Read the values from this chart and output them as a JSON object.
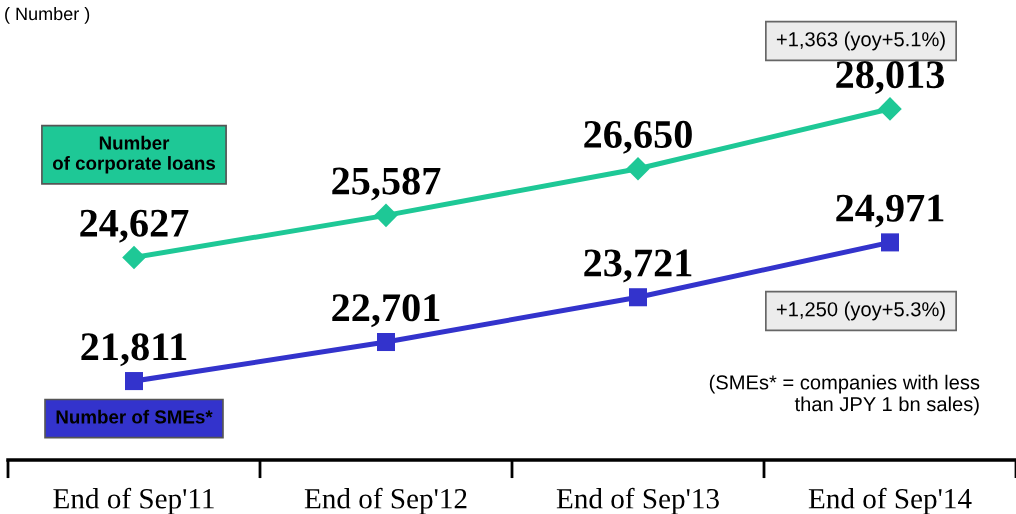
{
  "chart_data": {
    "type": "line",
    "categories": [
      "End of Sep'11",
      "End of Sep'12",
      "End of Sep'13",
      "End of Sep'14"
    ],
    "series": [
      {
        "name": "Number\nof corporate loans",
        "color": "#1ec896",
        "marker": "diamond",
        "values": [
          24627,
          25587,
          26650,
          28013
        ],
        "value_labels": [
          "24,627",
          "25,587",
          "26,650",
          "28,013"
        ]
      },
      {
        "name": "Number of SMEs*",
        "color": "#3333cc",
        "marker": "square",
        "values": [
          21811,
          22701,
          23721,
          24971
        ],
        "value_labels": [
          "21,811",
          "22,701",
          "23,721",
          "24,971"
        ]
      }
    ],
    "ylabel": "( Number )",
    "tick_labels": "x",
    "line_style": "solid",
    "annotations": [
      "+1,363 (yoy+5.1%)",
      "+1,250 (yoy+5.3%)",
      "(SMEs* = companies with less\nthan JPY 1 bn sales)"
    ]
  }
}
